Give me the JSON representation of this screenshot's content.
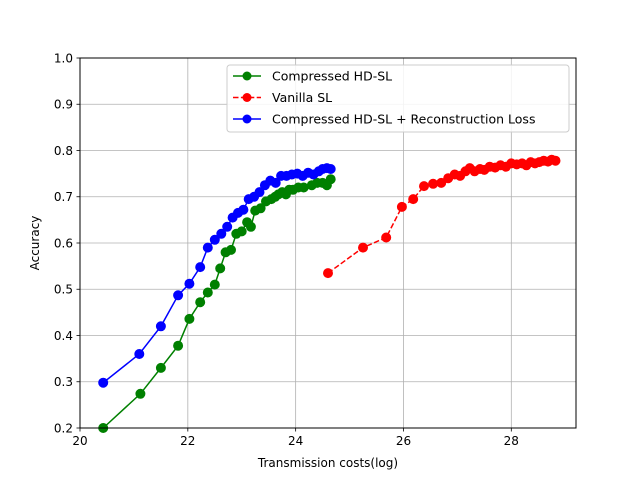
{
  "chart_data": {
    "type": "line",
    "xlabel": "Transmission costs(log)",
    "ylabel": "Accuracy",
    "xlim": [
      20,
      29.2
    ],
    "ylim": [
      0.2,
      1.0
    ],
    "xticks": [
      20,
      22,
      24,
      26,
      28
    ],
    "yticks": [
      0.2,
      0.3,
      0.4,
      0.5,
      0.6,
      0.7,
      0.8,
      0.9,
      1.0
    ],
    "grid": true,
    "legend_position": "top-right",
    "series": [
      {
        "name": "Compressed HD-SL",
        "color": "#008000",
        "line_style": "solid",
        "marker": "circle",
        "x": [
          20.43,
          21.12,
          21.5,
          21.82,
          22.03,
          22.23,
          22.37,
          22.5,
          22.6,
          22.7,
          22.8,
          22.9,
          23.0,
          23.1,
          23.17,
          23.25,
          23.35,
          23.45,
          23.55,
          23.62,
          23.68,
          23.75,
          23.82,
          23.88,
          23.95,
          24.05,
          24.15,
          24.3,
          24.4,
          24.5,
          24.58,
          24.65
        ],
        "y": [
          0.2,
          0.274,
          0.33,
          0.378,
          0.436,
          0.472,
          0.493,
          0.51,
          0.545,
          0.58,
          0.585,
          0.62,
          0.625,
          0.645,
          0.635,
          0.67,
          0.675,
          0.69,
          0.695,
          0.7,
          0.705,
          0.71,
          0.705,
          0.715,
          0.715,
          0.72,
          0.72,
          0.725,
          0.73,
          0.73,
          0.725,
          0.738
        ]
      },
      {
        "name": "Vanilla SL",
        "color": "#ff0000",
        "line_style": "dashed",
        "marker": "circle",
        "x": [
          24.6,
          25.25,
          25.68,
          25.97,
          26.18,
          26.38,
          26.55,
          26.7,
          26.83,
          26.95,
          27.05,
          27.15,
          27.23,
          27.32,
          27.42,
          27.5,
          27.6,
          27.7,
          27.8,
          27.9,
          28.0,
          28.1,
          28.2,
          28.28,
          28.36,
          28.44,
          28.52,
          28.6,
          28.68,
          28.75,
          28.82
        ],
        "y": [
          0.535,
          0.59,
          0.612,
          0.678,
          0.695,
          0.723,
          0.728,
          0.73,
          0.74,
          0.748,
          0.745,
          0.755,
          0.762,
          0.755,
          0.76,
          0.758,
          0.765,
          0.763,
          0.768,
          0.765,
          0.772,
          0.77,
          0.772,
          0.768,
          0.775,
          0.772,
          0.775,
          0.778,
          0.776,
          0.78,
          0.778
        ]
      },
      {
        "name": "Compressed HD-SL + Reconstruction Loss",
        "color": "#0000ff",
        "line_style": "solid",
        "marker": "circle",
        "x": [
          20.43,
          21.1,
          21.5,
          21.82,
          22.03,
          22.23,
          22.37,
          22.5,
          22.62,
          22.73,
          22.83,
          22.93,
          23.03,
          23.13,
          23.23,
          23.33,
          23.43,
          23.53,
          23.63,
          23.73,
          23.83,
          23.93,
          24.03,
          24.13,
          24.23,
          24.33,
          24.43,
          24.5,
          24.58,
          24.65
        ],
        "y": [
          0.298,
          0.36,
          0.42,
          0.487,
          0.512,
          0.548,
          0.59,
          0.607,
          0.62,
          0.635,
          0.655,
          0.665,
          0.672,
          0.695,
          0.7,
          0.71,
          0.725,
          0.735,
          0.73,
          0.745,
          0.745,
          0.748,
          0.75,
          0.745,
          0.752,
          0.748,
          0.755,
          0.76,
          0.762,
          0.76
        ]
      }
    ]
  }
}
